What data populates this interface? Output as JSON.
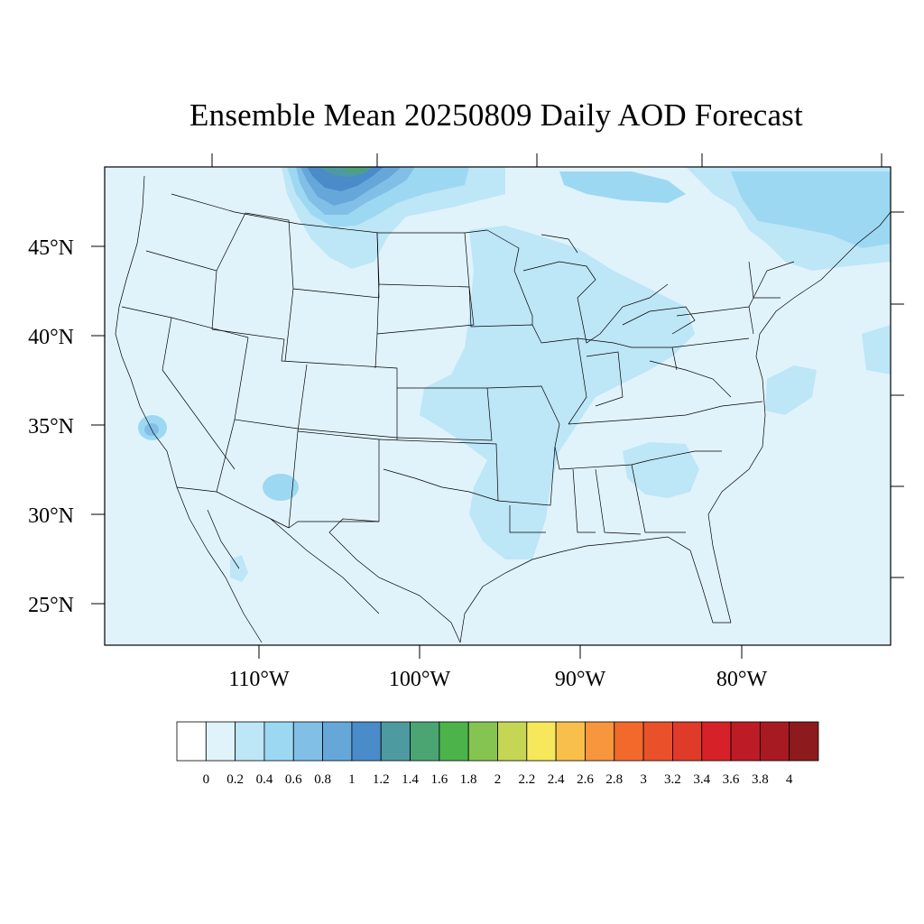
{
  "title": "Ensemble Mean 20250809 Daily AOD Forecast",
  "lat_labels": [
    "45°N",
    "40°N",
    "35°N",
    "30°N",
    "25°N"
  ],
  "lon_labels": [
    "110°W",
    "100°W",
    "90°W",
    "80°W"
  ],
  "colorbar": {
    "tick_labels": [
      "0",
      "0.2",
      "0.4",
      "0.6",
      "0.8",
      "1",
      "1.2",
      "1.4",
      "1.6",
      "1.8",
      "2",
      "2.2",
      "2.4",
      "2.6",
      "2.8",
      "3",
      "3.2",
      "3.4",
      "3.6",
      "3.8",
      "4"
    ],
    "colors": [
      "#ffffff",
      "#e0f3fb",
      "#bde6f7",
      "#9dd8f3",
      "#82bfe6",
      "#66a7da",
      "#4a8bc9",
      "#4d9ba0",
      "#4aa573",
      "#4cb34b",
      "#86c452",
      "#c5d655",
      "#f6e85a",
      "#f8bf4b",
      "#f7963c",
      "#f16a2c",
      "#e8512a",
      "#e03a28",
      "#d62128",
      "#bd1c26",
      "#a81a22",
      "#8d1a1c"
    ]
  },
  "map_data": {
    "field": "Daily AOD",
    "background_level": "0–0.2",
    "features": [
      {
        "region": "Southern Canada / Montana border (smoke plume)",
        "max_range": "1.2–1.6"
      },
      {
        "region": "Upper Midwest to Mississippi valley",
        "range": "0.2–0.4"
      },
      {
        "region": "Northeast / Quebec",
        "range": "0.2–0.6"
      },
      {
        "region": "Southern California",
        "range": "0.4–0.6"
      },
      {
        "region": "Central Arizona",
        "range": "0.2–0.6"
      }
    ]
  }
}
